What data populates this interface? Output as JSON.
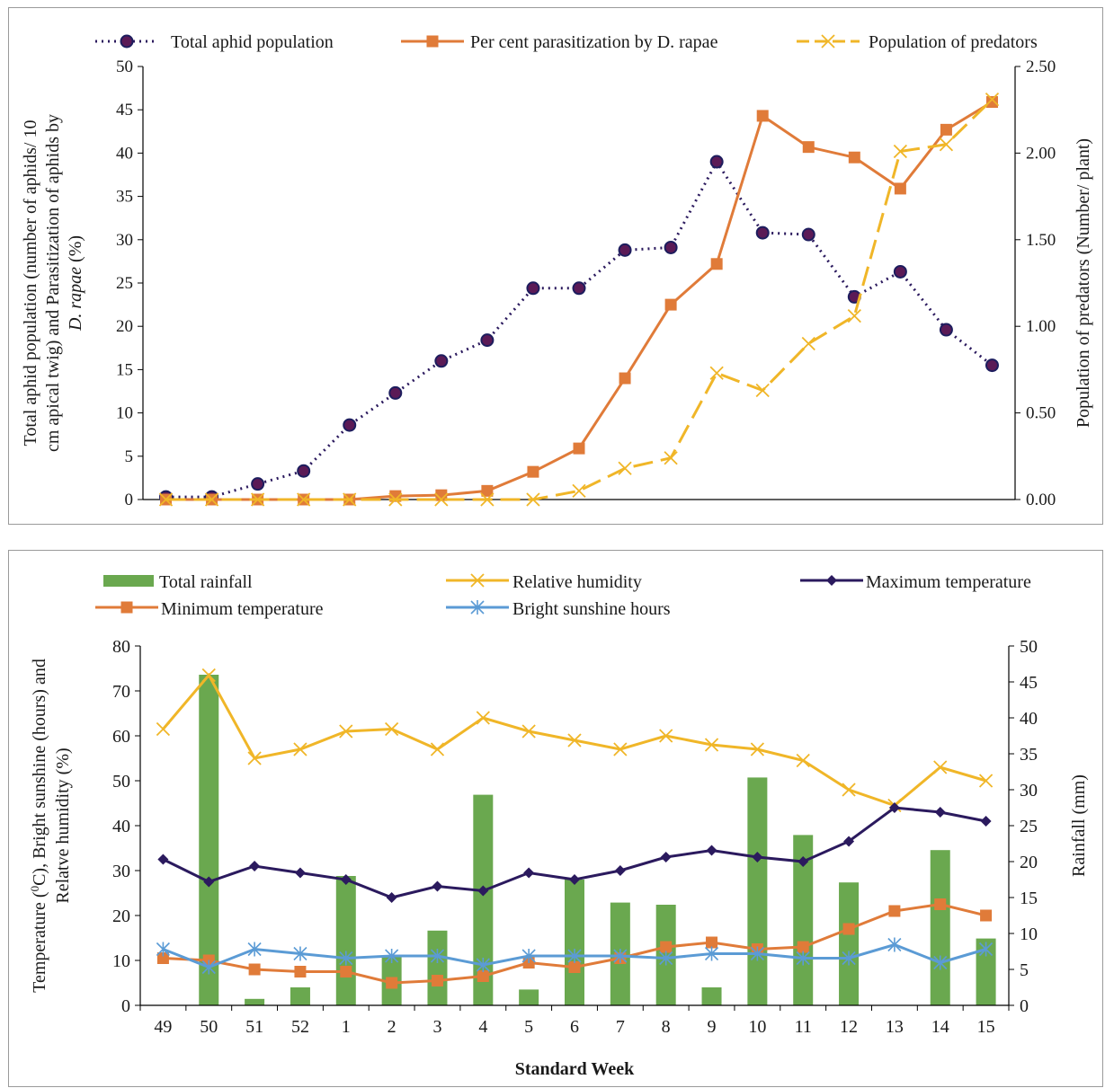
{
  "charts": [
    {
      "type": "line",
      "x": [
        "49",
        "50",
        "51",
        "52",
        "1",
        "2",
        "3",
        "4",
        "5",
        "6",
        "7",
        "8",
        "9",
        "10",
        "11",
        "12",
        "13",
        "14",
        "15"
      ],
      "ylabel_lines": [
        "Total aphid population (number of aphids/ 10",
        "cm apical twig) and Parasitization  of aphids by"
      ],
      "ylabel_line3_italic": "D. rapae",
      "ylabel_line3_rest": " (%)",
      "y2label": "Population of predators (Number/ plant)",
      "ylim": [
        0,
        50
      ],
      "y2lim": [
        0,
        2.5
      ],
      "yticks": [
        "0",
        "5",
        "10",
        "15",
        "20",
        "25",
        "30",
        "35",
        "40",
        "45",
        "50"
      ],
      "y2ticks": [
        "0.00",
        "0.50",
        "1.00",
        "1.50",
        "2.00",
        "2.50"
      ],
      "legend_position": "top",
      "grid": false,
      "series": [
        {
          "name": "Total aphid population",
          "axis": "left",
          "style": "dotted",
          "color": "#2b1a5e",
          "marker": "circle",
          "values": [
            0.3,
            0.3,
            1.8,
            3.3,
            8.6,
            12.3,
            16.0,
            18.4,
            24.4,
            24.4,
            28.8,
            29.1,
            39.0,
            30.8,
            30.6,
            23.4,
            26.3,
            19.6,
            15.5
          ]
        },
        {
          "name": "Per cent parasitization by D. rapae",
          "axis": "left",
          "style": "solid",
          "color": "#e07b39",
          "marker": "square",
          "values": [
            0,
            0,
            0,
            0,
            0,
            0.4,
            0.5,
            1.0,
            3.2,
            5.9,
            14.0,
            22.5,
            27.2,
            44.3,
            40.7,
            39.5,
            35.9,
            42.7,
            45.9
          ]
        },
        {
          "name": "Population of predators",
          "axis": "right",
          "style": "dashed",
          "color": "#f0b628",
          "marker": "x",
          "values": [
            0,
            0,
            0,
            0,
            0,
            0,
            0,
            0,
            0,
            0.05,
            0.18,
            0.24,
            0.73,
            0.63,
            0.9,
            1.06,
            2.01,
            2.05,
            2.31
          ]
        }
      ]
    },
    {
      "type": "bar+line",
      "x": [
        "49",
        "50",
        "51",
        "52",
        "1",
        "2",
        "3",
        "4",
        "5",
        "6",
        "7",
        "8",
        "9",
        "10",
        "11",
        "12",
        "13",
        "14",
        "15"
      ],
      "xlabel": "Standard Week",
      "ylabel_lines": [
        "Temperature (",
        "C), Bright  sunshine (hours) and",
        "Relatve humidity (%)"
      ],
      "ylabel_sup": "0",
      "y2label": "Rainfall  (mm)",
      "ylim": [
        0,
        80
      ],
      "y2lim": [
        0,
        50
      ],
      "yticks": [
        "0",
        "10",
        "20",
        "30",
        "40",
        "50",
        "60",
        "70",
        "80"
      ],
      "y2ticks": [
        "0",
        "5",
        "10",
        "15",
        "20",
        "25",
        "30",
        "35",
        "40",
        "45",
        "50"
      ],
      "legend_position": "top",
      "grid": false,
      "bars": {
        "name": "Total rainfall",
        "axis": "right",
        "color": "#6aa84f",
        "values": [
          0,
          46.0,
          0.9,
          2.5,
          18.0,
          6.8,
          10.4,
          29.3,
          2.2,
          17.5,
          14.3,
          14.0,
          2.5,
          31.7,
          23.7,
          17.1,
          0,
          21.6,
          9.3
        ]
      },
      "series": [
        {
          "name": "Relative humidity",
          "axis": "left",
          "style": "solid",
          "color": "#f0b628",
          "marker": "x",
          "values": [
            61.5,
            73.5,
            55,
            57,
            61,
            61.5,
            57,
            64,
            61,
            59,
            57,
            60,
            58,
            57,
            54.5,
            48,
            44.5,
            53,
            50
          ]
        },
        {
          "name": "Maximum temperature",
          "axis": "left",
          "style": "solid",
          "color": "#2b1a5e",
          "marker": "diamond",
          "values": [
            32.5,
            27.5,
            31,
            29.5,
            28,
            24,
            26.5,
            25.5,
            29.5,
            28,
            30,
            33,
            34.5,
            33,
            32,
            36.5,
            44,
            43,
            41
          ]
        },
        {
          "name": "Minimum temperature",
          "axis": "left",
          "style": "solid",
          "color": "#e07b39",
          "marker": "square",
          "values": [
            10.5,
            10,
            8,
            7.5,
            7.5,
            5,
            5.5,
            6.5,
            9.5,
            8.5,
            10.5,
            13,
            14,
            12.5,
            13,
            17,
            21,
            22.5,
            20
          ]
        },
        {
          "name": "Bright sunshine hours",
          "axis": "left",
          "style": "solid",
          "color": "#5b9bd5",
          "marker": "asterisk",
          "values": [
            12.5,
            8.5,
            12.5,
            11.5,
            10.5,
            11,
            11,
            9,
            11,
            11,
            11,
            10.5,
            11.5,
            11.5,
            10.5,
            10.5,
            13.5,
            9.5,
            12.5
          ]
        }
      ]
    }
  ]
}
